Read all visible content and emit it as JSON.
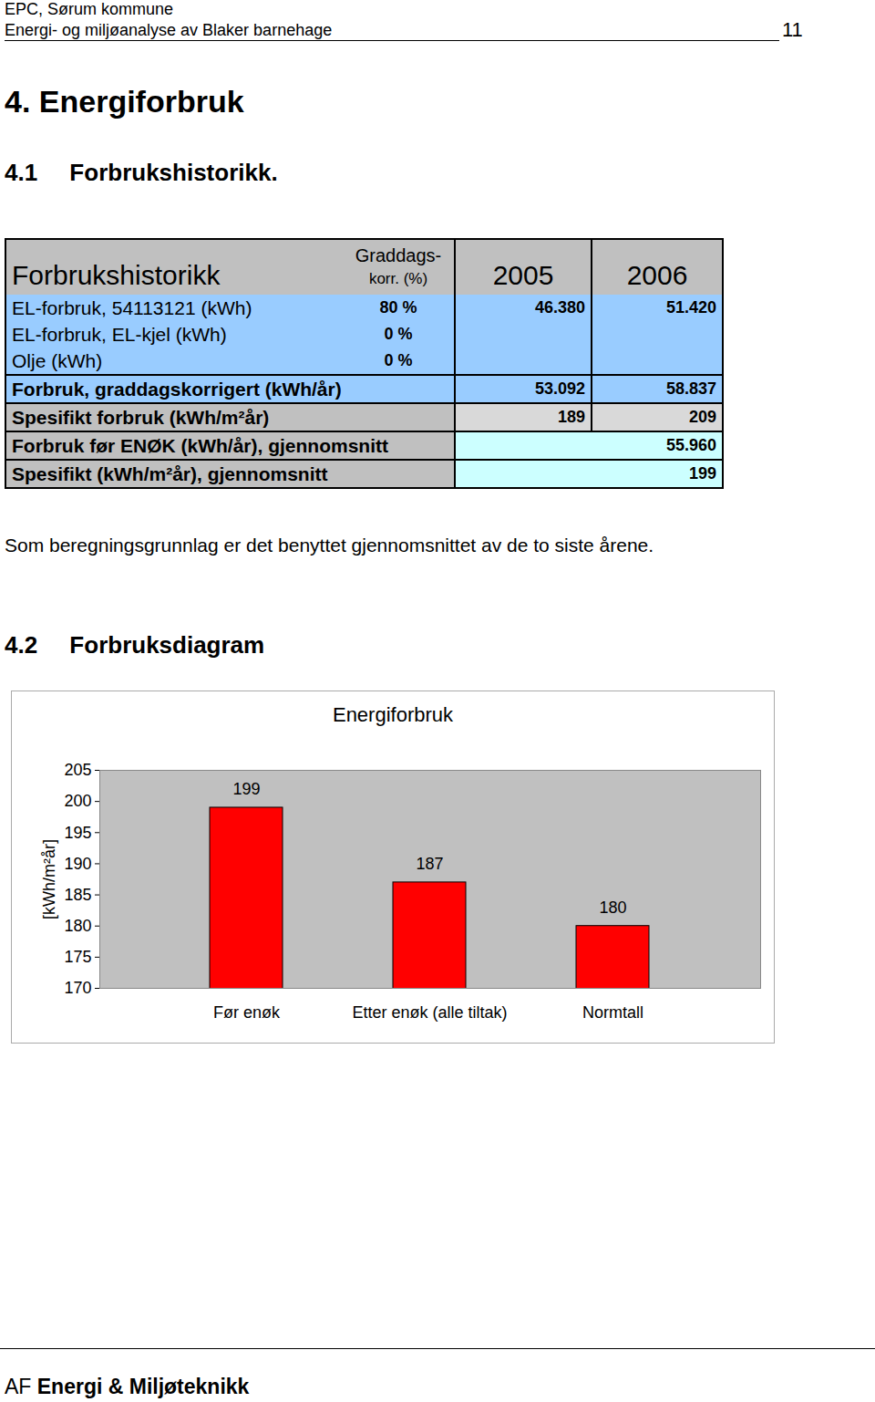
{
  "header": {
    "org": "EPC, Sørum kommune",
    "title": "Energi- og miljøanalyse av Blaker barnehage",
    "page": "11"
  },
  "heading": "4. Energiforbruk",
  "section_1": "4.1 Forbrukshistorikk.",
  "table": {
    "title": "Forbrukshistorikk",
    "korr_header": [
      "Graddags-",
      "korr. (%)"
    ],
    "years": [
      "2005",
      "2006"
    ],
    "rows": [
      {
        "label": "EL-forbruk, 54113121 (kWh)",
        "korr": "80 %",
        "values": [
          "46.380",
          "51.420"
        ]
      },
      {
        "label": "EL-forbruk, EL-kjel (kWh)",
        "korr": "0 %",
        "values": [
          "",
          ""
        ]
      },
      {
        "label": "Olje (kWh)",
        "korr": "0 %",
        "values": [
          "",
          ""
        ]
      },
      {
        "label": "Forbruk, graddagskorrigert (kWh/år)",
        "values": [
          "53.092",
          "58.837"
        ]
      },
      {
        "label": "Spesifikt forbruk (kWh/m²år)",
        "values": [
          "189",
          "209"
        ]
      },
      {
        "label": "Forbruk før ENØK (kWh/år), gjennomsnitt",
        "average": "55.960"
      },
      {
        "label": "Spesifikt (kWh/m²år), gjennomsnitt",
        "average": "199"
      }
    ]
  },
  "note": "Som beregningsgrunnlag er det benyttet gjennomsnittet av de to siste årene.",
  "section_2": "4.2 Forbruksdiagram",
  "chart_data": {
    "type": "bar",
    "title": "Energiforbruk",
    "y_label": "[kWh/m²år]",
    "categories": [
      "Før enøk",
      "Etter enøk (alle tiltak)",
      "Normtall"
    ],
    "values": [
      199,
      187,
      180
    ],
    "color": "#ff0000",
    "ylim": [
      170,
      205
    ],
    "yticks": [
      170,
      175,
      180,
      185,
      190,
      195,
      200,
      205
    ],
    "grid": false,
    "data_labels": true
  },
  "footer": {
    "prefix": "AF",
    "text": "Energi & Miljøteknikk"
  }
}
